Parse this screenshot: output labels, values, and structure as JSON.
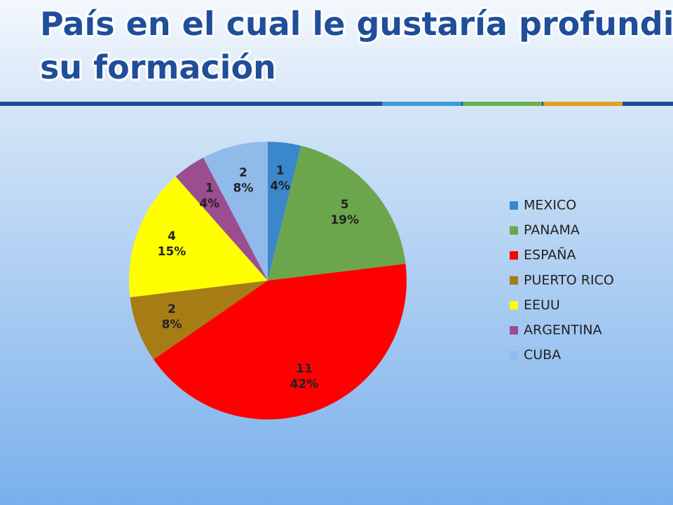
{
  "chart_data": {
    "type": "pie",
    "title": [
      "País en el cual le gustaría profundizar",
      "su formación"
    ],
    "categories": [
      "MEXICO",
      "PANAMA",
      "ESPAÑA",
      "PUERTO RICO",
      "EEUU",
      "ARGENTINA",
      "CUBA"
    ],
    "values": [
      1,
      5,
      11,
      2,
      4,
      1,
      2
    ],
    "percent_labels": [
      "4%",
      "19%",
      "42%",
      "8%",
      "15%",
      "4%",
      "8%"
    ],
    "colors": [
      "#3a87cc",
      "#6ca64c",
      "#ff0000",
      "#a67c14",
      "#ffff00",
      "#9b4d8f",
      "#8fbaea"
    ],
    "legend": "right"
  }
}
